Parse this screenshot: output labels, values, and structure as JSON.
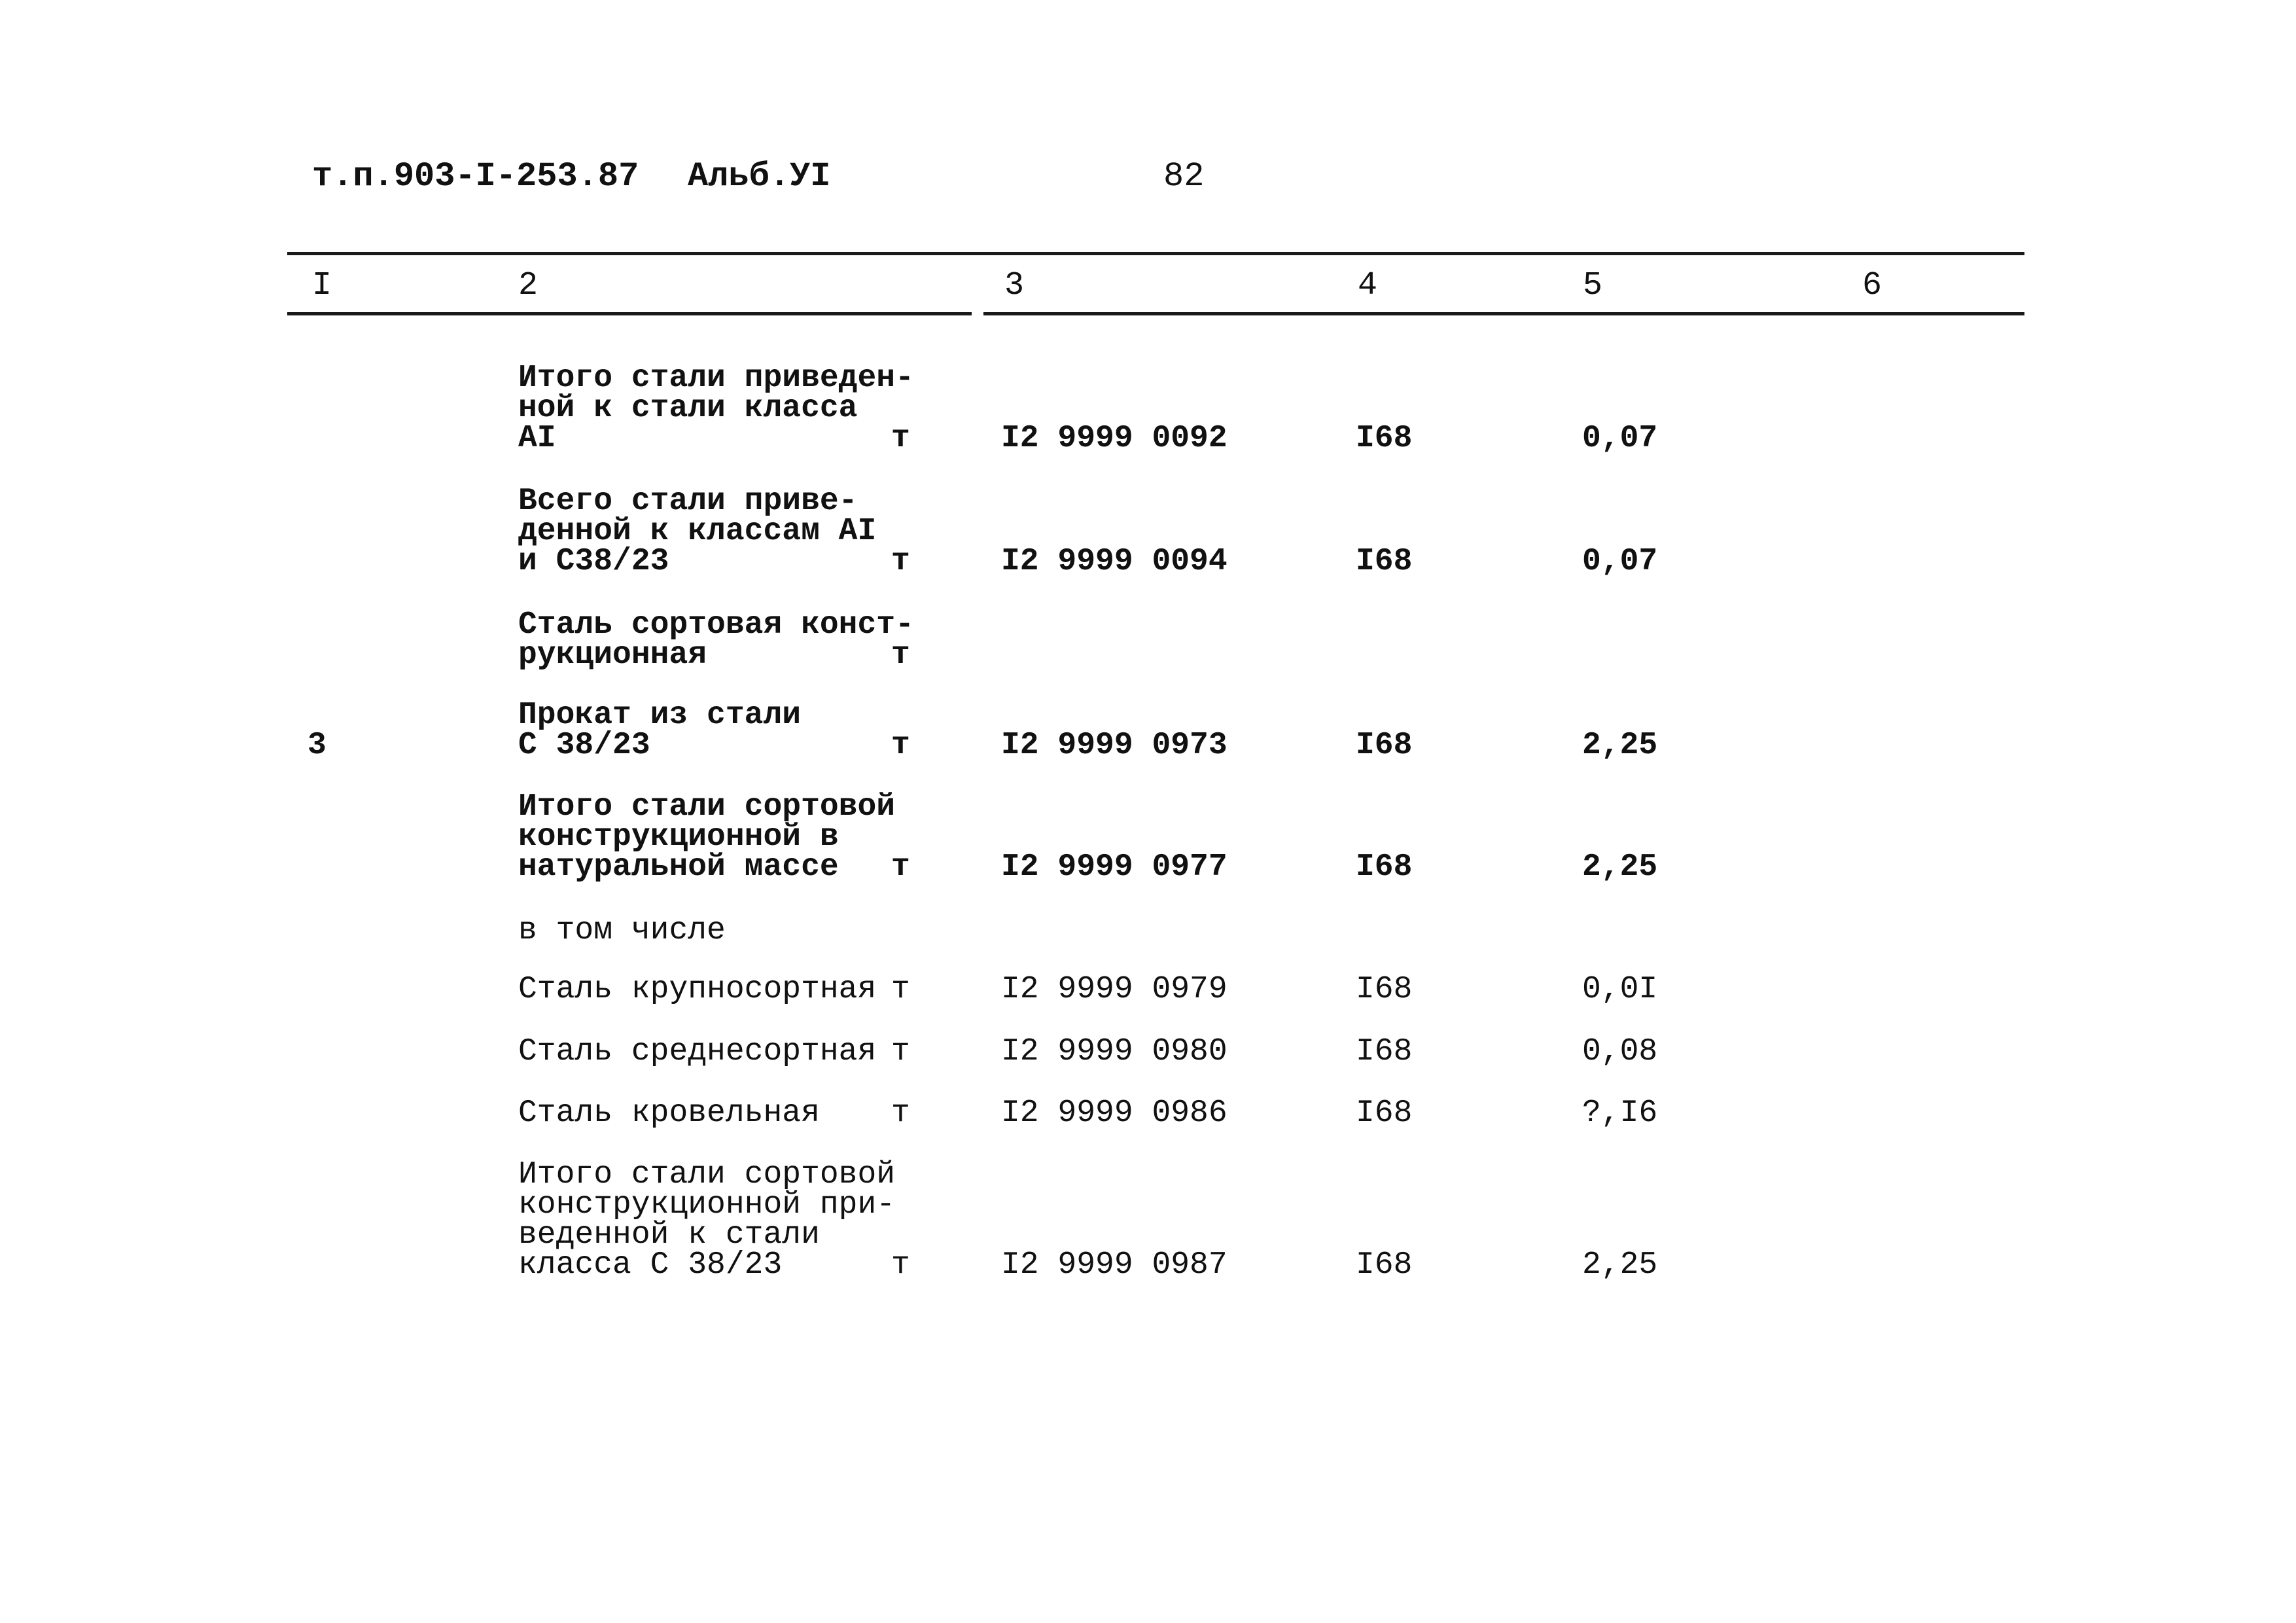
{
  "header": {
    "doc_code": "т.п.903-I-253.87",
    "album": "Альб.УI",
    "page_number": "82"
  },
  "columns": [
    "I",
    "2",
    "3",
    "4",
    "5",
    "6"
  ],
  "rows": [
    {
      "col1": "",
      "lines": [
        "Итого стали приведен-",
        "ной к стали класса",
        "AI"
      ],
      "unit": "т",
      "code": "I2 9999 0092",
      "col4": "I68",
      "col5": "0,07",
      "bold": true
    },
    {
      "col1": "",
      "lines": [
        "Всего стали приве-",
        "денной к классам AI",
        "и С38/23"
      ],
      "unit": "т",
      "code": "I2 9999 0094",
      "col4": "I68",
      "col5": "0,07",
      "bold": true
    },
    {
      "col1": "",
      "lines": [
        "Сталь сортовая конст-",
        "рукционная"
      ],
      "unit": "т",
      "code": "",
      "col4": "",
      "col5": "",
      "bold": true
    },
    {
      "col1": "3",
      "lines": [
        "Прокат из стали",
        "С 38/23"
      ],
      "unit": "т",
      "code": "I2 9999 0973",
      "col4": "I68",
      "col5": "2,25",
      "bold": true
    },
    {
      "col1": "",
      "lines": [
        "Итого стали сортовой",
        "конструкционной в",
        "натуральной массе"
      ],
      "unit": "т",
      "code": "I2 9999 0977",
      "col4": "I68",
      "col5": "2,25",
      "bold": true
    },
    {
      "col1": "",
      "lines": [
        "в том числе"
      ],
      "unit": "",
      "code": "",
      "col4": "",
      "col5": "",
      "bold": false
    },
    {
      "col1": "",
      "lines": [
        "Сталь крупносортная"
      ],
      "unit": "т",
      "code": "I2 9999 0979",
      "col4": "I68",
      "col5": "0,0I",
      "bold": false
    },
    {
      "col1": "",
      "lines": [
        "Сталь среднесортная"
      ],
      "unit": "т",
      "code": "I2 9999 0980",
      "col4": "I68",
      "col5": "0,08",
      "bold": false
    },
    {
      "col1": "",
      "lines": [
        "Сталь кровельная"
      ],
      "unit": "т",
      "code": "I2 9999 0986",
      "col4": "I68",
      "col5": "?,I6",
      "bold": false
    },
    {
      "col1": "",
      "lines": [
        "Итого стали сортовой",
        "конструкционной при-",
        "веденной к стали",
        "класса С 38/23"
      ],
      "unit": "т",
      "code": "I2 9999 0987",
      "col4": "I68",
      "col5": "2,25",
      "bold": false
    }
  ]
}
